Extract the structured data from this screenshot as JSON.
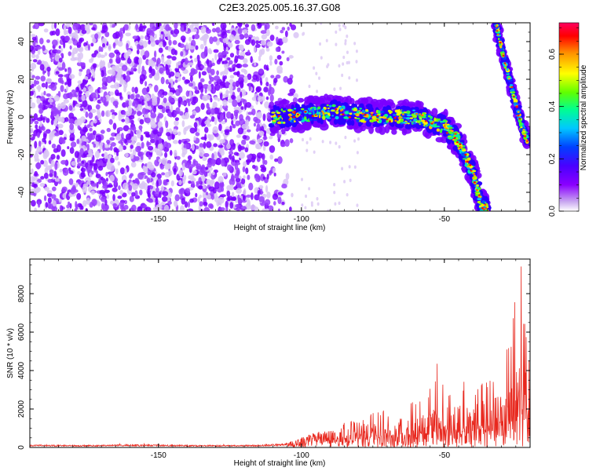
{
  "figure": {
    "title": "C2E3.2025.005.16.37.G08"
  },
  "chart_data": [
    {
      "type": "heatmap",
      "title": "C2E3.2025.005.16.37.G08",
      "xlabel": "Height of straight line (km)",
      "ylabel": "Frequency (Hz)",
      "xlim": [
        -195,
        -20
      ],
      "ylim": [
        -50,
        50
      ],
      "xticks": [
        -150,
        -100,
        -50
      ],
      "yticks": [
        -40,
        -20,
        0,
        20,
        40
      ],
      "grid": false,
      "colorbar": {
        "label": "Normalized spectral amplitude",
        "range": [
          0.0,
          0.72
        ],
        "ticks": [
          0.0,
          0.2,
          0.4,
          0.6
        ],
        "colormap": [
          "#ffffff",
          "#c9a8f0",
          "#8a00ff",
          "#4a00ff",
          "#0040ff",
          "#00c8ff",
          "#00ff90",
          "#60ff00",
          "#ffff00",
          "#ff9000",
          "#ff0000",
          "#ff0060"
        ]
      },
      "features": [
        {
          "name": "broadband noise",
          "x": [
            -195,
            -100
          ],
          "freq": [
            -50,
            50
          ],
          "amplitude": 0.05
        },
        {
          "name": "main signal track",
          "points": [
            [
              -110,
              0
            ],
            [
              -100,
              1
            ],
            [
              -90,
              3
            ],
            [
              -80,
              1
            ],
            [
              -70,
              0
            ],
            [
              -60,
              0
            ],
            [
              -50,
              -5
            ],
            [
              -45,
              -13
            ],
            [
              -40,
              -30
            ],
            [
              -37,
              -47
            ],
            [
              -35,
              -50
            ]
          ],
          "amplitude": 0.45
        },
        {
          "name": "secondary track",
          "points": [
            [
              -32,
              50
            ],
            [
              -29,
              30
            ],
            [
              -26,
              13
            ],
            [
              -23,
              -5
            ],
            [
              -21,
              -12
            ]
          ],
          "amplitude": 0.5
        }
      ]
    },
    {
      "type": "line",
      "xlabel": "Height of straight line (km)",
      "ylabel": "SNR (10 * v/v)",
      "xlim": [
        -195,
        -20
      ],
      "ylim": [
        0,
        9800
      ],
      "xticks": [
        -150,
        -100,
        -50
      ],
      "yticks": [
        0,
        2000,
        4000,
        6000,
        8000
      ],
      "grid": false,
      "series": [
        {
          "color": "#e8281e",
          "x": [
            -195,
            -185,
            -175,
            -165,
            -155,
            -145,
            -135,
            -125,
            -115,
            -105,
            -100,
            -95,
            -90,
            -85,
            -80,
            -75,
            -70,
            -65,
            -60,
            -55,
            -52,
            -50,
            -45,
            -40,
            -35,
            -30,
            -27,
            -25,
            -23,
            -21
          ],
          "envelope_max": [
            150,
            150,
            140,
            180,
            200,
            160,
            150,
            150,
            150,
            220,
            500,
            800,
            900,
            1300,
            1500,
            1800,
            2000,
            2100,
            2700,
            3200,
            4900,
            3100,
            3500,
            3300,
            3600,
            3900,
            6000,
            8500,
            9600,
            5000
          ],
          "typical": [
            120,
            120,
            110,
            130,
            140,
            120,
            110,
            110,
            120,
            200,
            350,
            550,
            600,
            700,
            800,
            900,
            950,
            1000,
            1100,
            1300,
            1400,
            1400,
            1500,
            1600,
            1700,
            1900,
            2300,
            2600,
            3000,
            2500
          ]
        }
      ]
    }
  ]
}
